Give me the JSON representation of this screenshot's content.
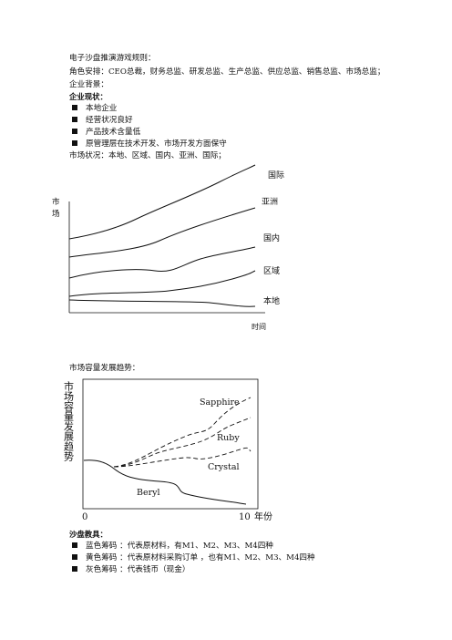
{
  "text": {
    "title": "电子沙盘推演游戏规则：",
    "roles": "角色安排：CEO总裁，财务总监、研发总监、生产总监、供应总监、销售总监、市场总监；",
    "background": "企业背景：",
    "status_heading": "企业现状：",
    "status_items": [
      "本地企业",
      "经营状况良好",
      "产品技术含量低",
      "原管理层在技术开发、市场开发方面保守"
    ],
    "market_status": "市场状况：本地、区域、国内、亚洲、国际；",
    "capacity_heading": "市场容量发展趋势：",
    "tools_heading": "沙盘教具：",
    "tools_items": [
      "蓝色筹码 ：代表原材料，有M1、M2、M3、M4四种",
      "黄色筹码 ：代表原材料采购订单 ，也有M1、M2、M3、M4四种",
      "灰色筹码 ：代表钱币（现金）"
    ]
  },
  "chart1": {
    "ylabel": "市场",
    "xlabel": "时间",
    "series_labels": [
      "国际",
      "亚洲",
      "国内",
      "区域",
      "本地"
    ]
  },
  "chart2": {
    "ylabel": "市场容量发展趋势",
    "x_start": "0",
    "x_end": "10",
    "x_unit": "年份",
    "series_labels": [
      "Sapphire",
      "Ruby",
      "Crystal",
      "Beryl"
    ]
  }
}
